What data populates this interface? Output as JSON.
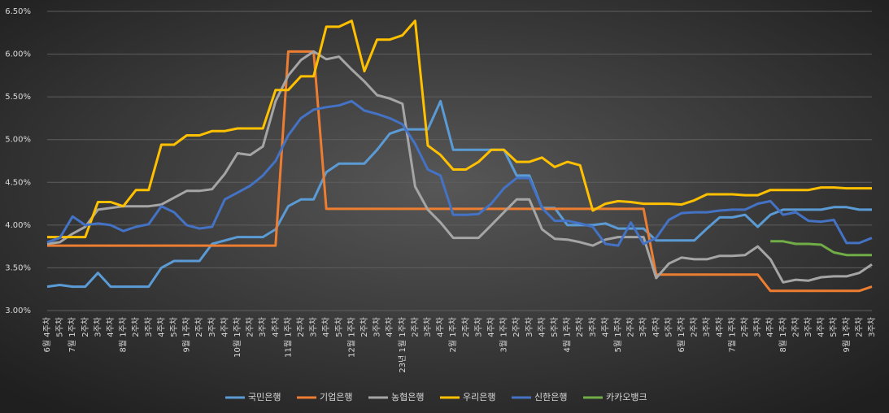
{
  "chart_data": {
    "type": "line",
    "categories": [
      "6월 4주차",
      "5주차",
      "7월 1주차",
      "2주차",
      "3주차",
      "4주차",
      "8월 1주차",
      "2주차",
      "3주차",
      "4주차",
      "5주차",
      "9월 1주차",
      "2주차",
      "3주차",
      "4주차",
      "10월 1주차",
      "2주차",
      "3주차",
      "4주차",
      "11월 1주차",
      "2주차",
      "3주차",
      "4주차",
      "5주차",
      "12월 1주차",
      "2주차",
      "3주차",
      "4주차",
      "23년 1월 1주차",
      "2주차",
      "3주차",
      "4주차",
      "2월 1주차",
      "2주차",
      "3주차",
      "4주차",
      "3월 1주차",
      "2주차",
      "3주차",
      "4주차",
      "5주차",
      "4월 1주차",
      "2주차",
      "3주차",
      "4주차",
      "5월 1주차",
      "2주차",
      "3주차",
      "4주차",
      "5주차",
      "6월 1주차",
      "2주차",
      "3주차",
      "4주차",
      "7월 1주차",
      "2주차",
      "3주차",
      "4주차",
      "8월 1주차",
      "2주차",
      "3주차",
      "4주차",
      "5주차",
      "9월 1주차",
      "2주차",
      "3주차"
    ],
    "series": [
      {
        "name": "국민은행",
        "color": "#5b9bd5",
        "values": [
          3.28,
          3.3,
          3.28,
          3.28,
          3.44,
          3.28,
          3.28,
          3.28,
          3.28,
          3.5,
          3.58,
          3.58,
          3.58,
          3.78,
          3.82,
          3.86,
          3.86,
          3.86,
          3.95,
          4.22,
          4.3,
          4.3,
          4.62,
          4.72,
          4.72,
          4.72,
          4.88,
          5.07,
          5.12,
          5.12,
          5.12,
          5.45,
          4.88,
          4.88,
          4.88,
          4.88,
          4.88,
          4.58,
          4.58,
          4.2,
          4.2,
          4.0,
          4.0,
          4.0,
          4.02,
          3.96,
          3.96,
          3.96,
          3.82,
          3.82,
          3.82,
          3.82,
          3.96,
          4.09,
          4.09,
          4.12,
          3.98,
          4.12,
          4.18,
          4.18,
          4.18,
          4.18,
          4.21,
          4.21,
          4.18,
          4.18
        ]
      },
      {
        "name": "기업은행",
        "color": "#ed7d31",
        "values": [
          3.76,
          3.76,
          3.76,
          3.76,
          3.76,
          3.76,
          3.76,
          3.76,
          3.76,
          3.76,
          3.76,
          3.76,
          3.76,
          3.76,
          3.76,
          3.76,
          3.76,
          3.76,
          3.76,
          6.03,
          6.03,
          6.03,
          4.19,
          4.19,
          4.19,
          4.19,
          4.19,
          4.19,
          4.19,
          4.19,
          4.19,
          4.19,
          4.19,
          4.19,
          4.19,
          4.19,
          4.19,
          4.19,
          4.19,
          4.19,
          4.19,
          4.19,
          4.19,
          4.19,
          4.19,
          4.19,
          4.19,
          4.19,
          3.42,
          3.42,
          3.42,
          3.42,
          3.42,
          3.42,
          3.42,
          3.42,
          3.42,
          3.23,
          3.23,
          3.23,
          3.23,
          3.23,
          3.23,
          3.23,
          3.23,
          3.28
        ]
      },
      {
        "name": "농협은행",
        "color": "#a5a5a5",
        "values": [
          3.78,
          3.8,
          3.9,
          3.98,
          4.18,
          4.2,
          4.22,
          4.22,
          4.22,
          4.24,
          4.32,
          4.4,
          4.4,
          4.42,
          4.6,
          4.84,
          4.82,
          4.92,
          5.45,
          5.75,
          5.93,
          6.03,
          5.94,
          5.97,
          5.82,
          5.68,
          5.52,
          5.48,
          5.42,
          4.45,
          4.18,
          4.03,
          3.85,
          3.85,
          3.85,
          4.0,
          4.15,
          4.3,
          4.3,
          3.95,
          3.84,
          3.83,
          3.8,
          3.76,
          3.83,
          3.86,
          3.86,
          3.86,
          3.38,
          3.55,
          3.62,
          3.6,
          3.6,
          3.64,
          3.64,
          3.65,
          3.75,
          3.6,
          3.33,
          3.36,
          3.35,
          3.39,
          3.4,
          3.4,
          3.44,
          3.54
        ]
      },
      {
        "name": "우리은행",
        "color": "#ffc000",
        "values": [
          3.86,
          3.86,
          3.86,
          3.86,
          4.27,
          4.27,
          4.22,
          4.41,
          4.41,
          4.94,
          4.94,
          5.05,
          5.05,
          5.1,
          5.1,
          5.13,
          5.13,
          5.13,
          5.58,
          5.58,
          5.74,
          5.74,
          6.32,
          6.32,
          6.39,
          5.8,
          6.17,
          6.17,
          6.22,
          6.39,
          4.93,
          4.82,
          4.65,
          4.65,
          4.74,
          4.88,
          4.88,
          4.74,
          4.74,
          4.79,
          4.68,
          4.74,
          4.7,
          4.17,
          4.25,
          4.28,
          4.27,
          4.25,
          4.25,
          4.25,
          4.24,
          4.29,
          4.36,
          4.36,
          4.36,
          4.35,
          4.35,
          4.41,
          4.41,
          4.41,
          4.41,
          4.44,
          4.44,
          4.43,
          4.43,
          4.43
        ]
      },
      {
        "name": "신한은행",
        "color": "#4472c4",
        "values": [
          3.8,
          3.85,
          4.1,
          4.0,
          4.02,
          4.0,
          3.93,
          3.98,
          4.01,
          4.22,
          4.15,
          4.0,
          3.96,
          3.98,
          4.3,
          4.38,
          4.46,
          4.58,
          4.75,
          5.05,
          5.25,
          5.35,
          5.38,
          5.4,
          5.45,
          5.34,
          5.3,
          5.25,
          5.18,
          4.95,
          4.65,
          4.58,
          4.12,
          4.12,
          4.13,
          4.25,
          4.43,
          4.55,
          4.55,
          4.2,
          4.05,
          4.05,
          4.02,
          3.98,
          3.78,
          3.76,
          4.03,
          3.78,
          3.85,
          4.06,
          4.14,
          4.15,
          4.15,
          4.17,
          4.18,
          4.18,
          4.25,
          4.28,
          4.12,
          4.15,
          4.05,
          4.04,
          4.06,
          3.79,
          3.79,
          3.85
        ]
      },
      {
        "name": "카카오뱅크",
        "color": "#70ad47",
        "values": [
          null,
          null,
          null,
          null,
          null,
          null,
          null,
          null,
          null,
          null,
          null,
          null,
          null,
          null,
          null,
          null,
          null,
          null,
          null,
          null,
          null,
          null,
          null,
          null,
          null,
          null,
          null,
          null,
          null,
          null,
          null,
          null,
          null,
          null,
          null,
          null,
          null,
          null,
          null,
          null,
          null,
          null,
          null,
          null,
          null,
          null,
          null,
          null,
          null,
          null,
          null,
          null,
          null,
          null,
          null,
          null,
          null,
          3.81,
          3.81,
          3.78,
          3.78,
          3.77,
          3.68,
          3.65,
          3.65,
          3.65
        ]
      }
    ],
    "ylim": [
      3.0,
      6.5
    ],
    "yticks": [
      {
        "value": 3.0,
        "label": "3.00%"
      },
      {
        "value": 3.5,
        "label": "3.50%"
      },
      {
        "value": 4.0,
        "label": "4.00%"
      },
      {
        "value": 4.5,
        "label": "4.50%"
      },
      {
        "value": 5.0,
        "label": "5.00%"
      },
      {
        "value": 5.5,
        "label": "5.50%"
      },
      {
        "value": 6.0,
        "label": "6.00%"
      },
      {
        "value": 6.5,
        "label": "6.50%"
      }
    ],
    "grid": true,
    "legend": "bottom"
  }
}
